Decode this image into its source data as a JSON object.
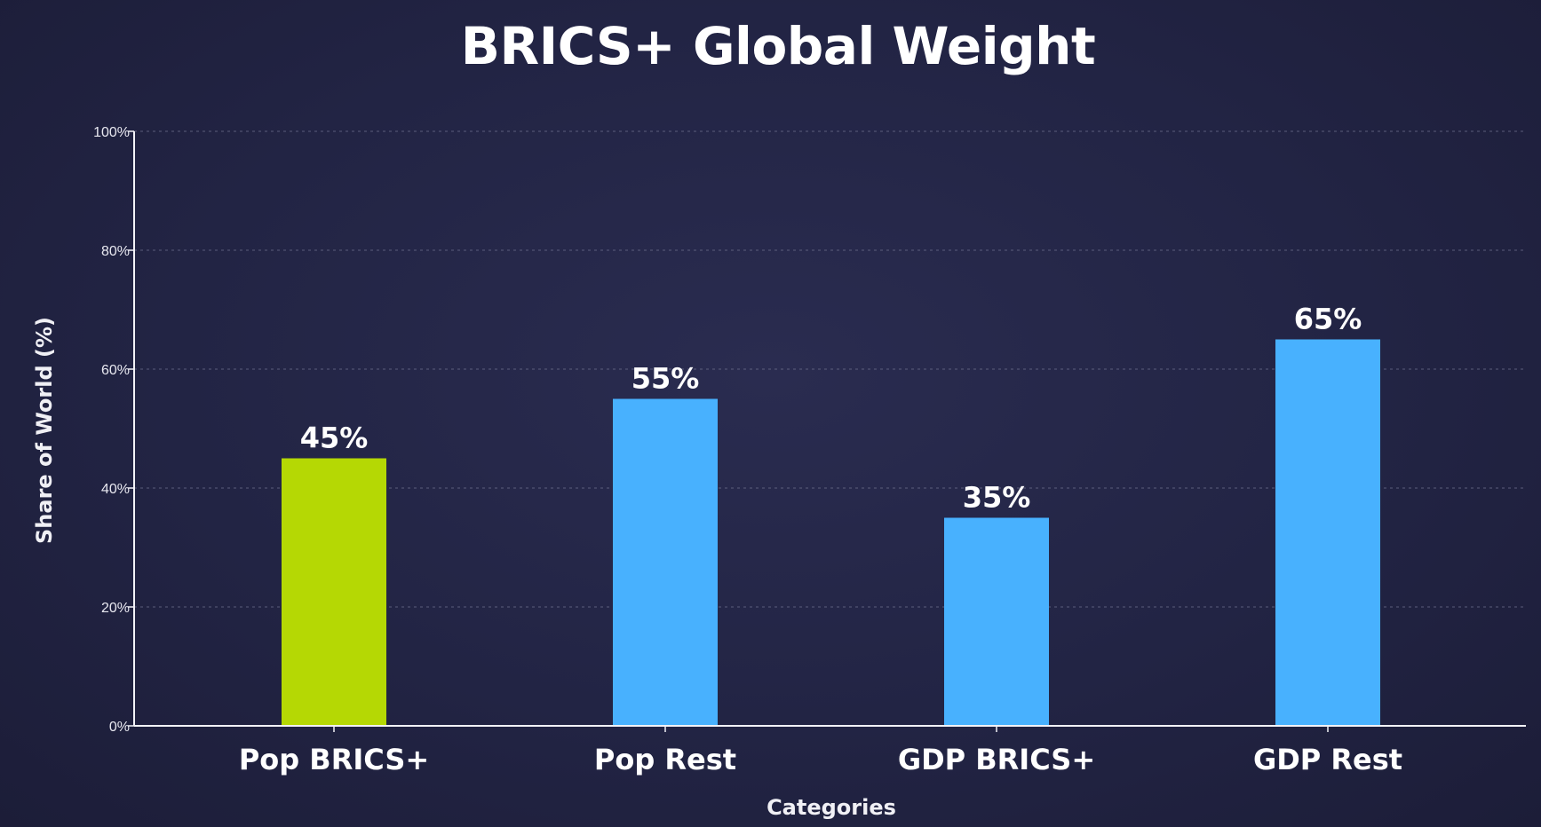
{
  "chart_data": {
    "type": "bar",
    "title": "BRICS+ Global Weight",
    "xlabel": "Categories",
    "ylabel": "Share of World (%)",
    "categories": [
      "Pop BRICS+",
      "Pop Rest",
      "GDP BRICS+",
      "GDP Rest"
    ],
    "values": [
      45,
      55,
      35,
      65
    ],
    "value_labels": [
      "45%",
      "55%",
      "35%",
      "65%"
    ],
    "bar_colors": [
      "#b5d804",
      "#48b1fe",
      "#48b1fe",
      "#48b1fe"
    ],
    "ylim": [
      0,
      100
    ],
    "yticks": [
      0,
      20,
      40,
      60,
      80,
      100
    ],
    "ytick_labels": [
      "0%",
      "20%",
      "40%",
      "60%",
      "80%",
      "100%"
    ],
    "grid": true,
    "legend": null
  }
}
